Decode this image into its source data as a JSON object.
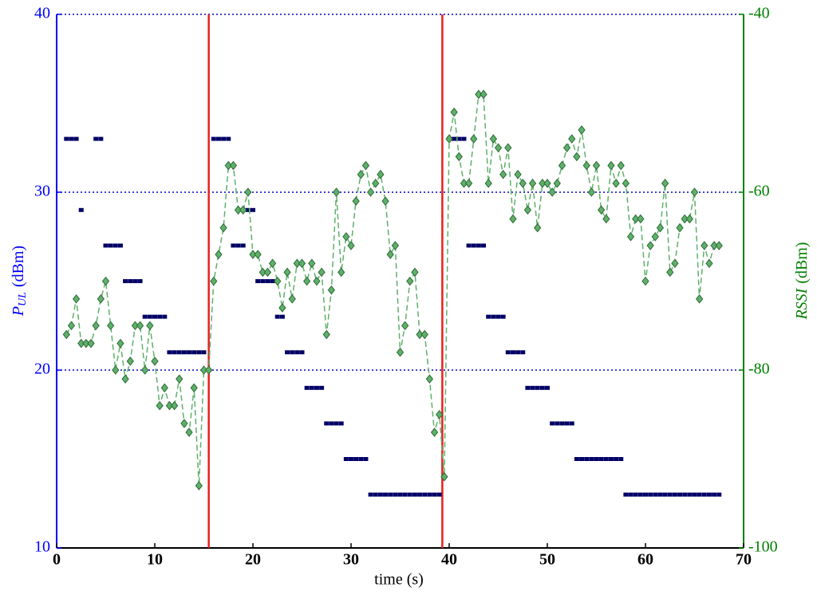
{
  "chart_data": {
    "type": "scatter",
    "xlabel": "time (s)",
    "ylabel": {
      "symbol": "P",
      "subscript": "UL",
      "unit": "(dBm)"
    },
    "y2label": {
      "symbol": "RSSI",
      "unit": "(dBm)"
    },
    "xlim": [
      0,
      70
    ],
    "xticks": [
      0,
      10,
      20,
      30,
      40,
      50,
      60,
      70
    ],
    "ylim": [
      10,
      40
    ],
    "yticks": [
      10,
      20,
      30,
      40
    ],
    "y2lim": [
      -100,
      -40
    ],
    "y2ticks": [
      -100,
      -80,
      -60,
      -40
    ],
    "grid": true,
    "grid_color": "#0000cc",
    "left_axis_color": "#0000ff",
    "right_axis_color": "#008000",
    "vlines": [
      15.5,
      39.3
    ],
    "vline_color": "#e8201e",
    "x": [
      1,
      1.5,
      2,
      2.5,
      3,
      3.5,
      4,
      4.5,
      5,
      5.5,
      6,
      6.5,
      7,
      7.5,
      8,
      8.5,
      9,
      9.5,
      10,
      10.5,
      11,
      11.5,
      12,
      12.5,
      13,
      13.5,
      14,
      14.5,
      15,
      15.5,
      16,
      16.5,
      17,
      17.5,
      18,
      18.5,
      19,
      19.5,
      20,
      20.5,
      21,
      21.5,
      22,
      22.5,
      23,
      23.5,
      24,
      24.5,
      25,
      25.5,
      26,
      26.5,
      27,
      27.5,
      28,
      28.5,
      29,
      29.5,
      30,
      30.5,
      31,
      31.5,
      32,
      32.5,
      33,
      33.5,
      34,
      34.5,
      35,
      35.5,
      36,
      36.5,
      37,
      37.5,
      38,
      38.5,
      39,
      39.5,
      40,
      40.5,
      41,
      41.5,
      42,
      42.5,
      43,
      43.5,
      44,
      44.5,
      45,
      45.5,
      46,
      46.5,
      47,
      47.5,
      48,
      48.5,
      49,
      49.5,
      50,
      50.5,
      51,
      51.5,
      52,
      52.5,
      53,
      53.5,
      54,
      54.5,
      55,
      55.5,
      56,
      56.5,
      57,
      57.5,
      58,
      58.5,
      59,
      59.5,
      60,
      60.5,
      61,
      61.5,
      62,
      62.5,
      63,
      63.5,
      64,
      64.5,
      65,
      65.5,
      66,
      66.5,
      67,
      67.5
    ],
    "series": [
      {
        "name": "P_UL",
        "color": "#000066",
        "marker": "square",
        "axis": "y",
        "values": [
          33,
          33,
          33,
          29,
          null,
          null,
          33,
          33,
          27,
          27,
          27,
          27,
          25,
          25,
          25,
          25,
          23,
          23,
          23,
          23,
          23,
          21,
          21,
          21,
          21,
          21,
          21,
          21,
          21,
          null,
          33,
          33,
          33,
          33,
          27,
          27,
          27,
          29,
          29,
          25,
          25,
          25,
          25,
          23,
          23,
          21,
          21,
          21,
          21,
          19,
          19,
          19,
          19,
          17,
          17,
          17,
          17,
          15,
          15,
          15,
          15,
          15,
          13,
          13,
          13,
          13,
          13,
          13,
          13,
          13,
          13,
          13,
          13,
          13,
          13,
          13,
          13,
          null,
          33,
          33,
          33,
          33,
          27,
          27,
          27,
          27,
          23,
          23,
          23,
          23,
          21,
          21,
          21,
          21,
          19,
          19,
          19,
          19,
          19,
          17,
          17,
          17,
          17,
          17,
          15,
          15,
          15,
          15,
          15,
          15,
          15,
          15,
          15,
          15,
          13,
          13,
          13,
          13,
          13,
          13,
          13,
          13,
          13,
          13,
          13,
          13,
          13,
          13,
          13,
          13,
          13,
          13,
          13,
          13
        ]
      },
      {
        "name": "RSSI",
        "color": "#5fb06a",
        "marker": "diamond",
        "line": "dashed",
        "axis": "y2",
        "values": [
          -76,
          -75,
          -72,
          -77,
          -77,
          -77,
          -75,
          -72,
          -70,
          -75,
          -80,
          -77,
          -81,
          -79,
          -75,
          -75,
          -80,
          -75,
          -79,
          -84,
          -82,
          -84,
          -84,
          -81,
          -86,
          -87,
          -82,
          -93,
          -80,
          -80,
          -70,
          -67,
          -64,
          -57,
          -57,
          -62,
          -62,
          -60,
          -67,
          -67,
          -69,
          -69,
          -68,
          -70,
          -73,
          -69,
          -72,
          -68,
          -68,
          -70,
          -68,
          -70,
          -69,
          -76,
          -71,
          -60,
          -69,
          -65,
          -66,
          -61,
          -58,
          -57,
          -60,
          -59,
          -58,
          -61,
          -67,
          -66,
          -78,
          -75,
          -70,
          -69,
          -76,
          -76,
          -81,
          -87,
          -85,
          -92,
          -54,
          -51,
          -56,
          -59,
          -59,
          -54,
          -49,
          -49,
          -59,
          -54,
          -55,
          -58,
          -55,
          -63,
          -58,
          -59,
          -62,
          -59,
          -64,
          -59,
          -59,
          -60,
          -59,
          -57,
          -55,
          -54,
          -56,
          -53,
          -57,
          -60,
          -57,
          -62,
          -63,
          -57,
          -59,
          -57,
          -59,
          -65,
          -63,
          -63,
          -70,
          -66,
          -65,
          -64,
          -59,
          -69,
          -68,
          -64,
          -63,
          -63,
          -60,
          -72,
          -66,
          -68,
          -66,
          -66
        ]
      }
    ]
  }
}
